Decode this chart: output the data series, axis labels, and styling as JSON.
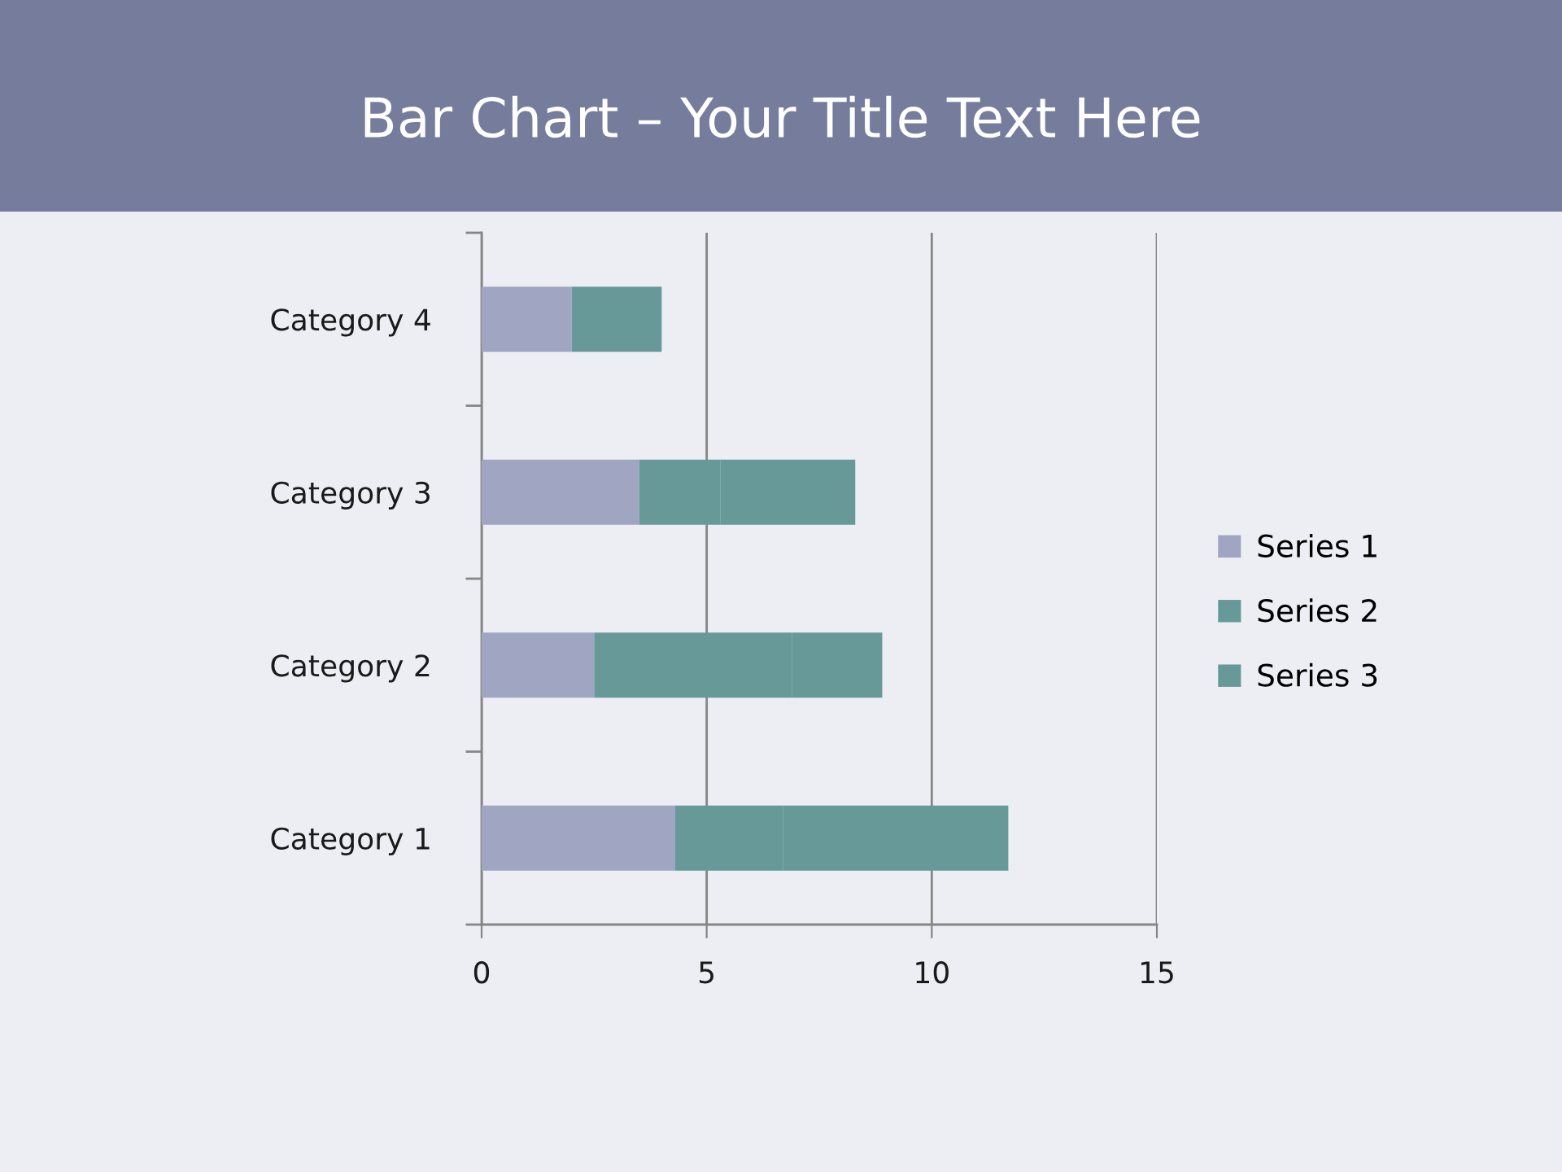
{
  "chart_data": {
    "type": "bar",
    "orientation": "horizontal",
    "stacked": true,
    "title": "Bar Chart – Your Title Text Here",
    "categories": [
      "Category 4",
      "Category 3",
      "Category 2",
      "Category 1"
    ],
    "series": [
      {
        "name": "Series 1",
        "color": "#a0a5c2",
        "values": [
          2,
          3.5,
          2.5,
          4.3
        ]
      },
      {
        "name": "Series 2",
        "color": "#679999",
        "values": [
          1,
          1.8,
          4.4,
          2.4
        ]
      },
      {
        "name": "Series 3",
        "color": "#679999",
        "values": [
          1,
          3,
          2,
          5
        ]
      }
    ],
    "xlim": [
      0,
      15
    ],
    "xticks": [
      0,
      5,
      10,
      15
    ],
    "grid": "x",
    "legend": "right"
  }
}
